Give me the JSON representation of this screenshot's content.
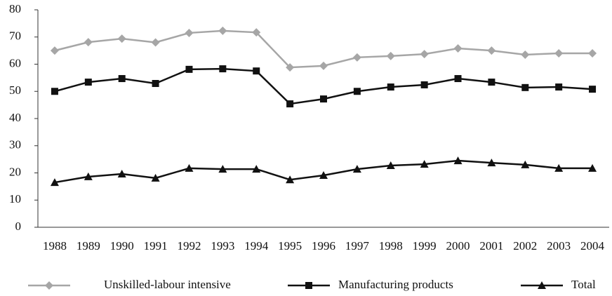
{
  "chart_data": {
    "type": "line",
    "categories": [
      "1988",
      "1989",
      "1990",
      "1991",
      "1992",
      "1993",
      "1994",
      "1995",
      "1996",
      "1997",
      "1998",
      "1999",
      "2000",
      "2001",
      "2002",
      "2003",
      "2004"
    ],
    "series": [
      {
        "name": "Unskilled-labour intensive",
        "color": "#a6a6a6",
        "marker": "diamond",
        "values": [
          65,
          68.1,
          69.4,
          68,
          71.5,
          72.3,
          71.7,
          58.8,
          59.4,
          62.5,
          63,
          63.7,
          65.8,
          65,
          63.5,
          64,
          64
        ]
      },
      {
        "name": "Manufacturing products",
        "color": "#111111",
        "marker": "square",
        "values": [
          50,
          53.4,
          54.7,
          52.9,
          58.1,
          58.3,
          57.5,
          45.4,
          47.2,
          50,
          51.6,
          52.4,
          54.7,
          53.4,
          51.4,
          51.6,
          50.8
        ]
      },
      {
        "name": "Total",
        "color": "#111111",
        "marker": "triangle",
        "values": [
          16.5,
          18.6,
          19.6,
          18.1,
          21.7,
          21.4,
          21.4,
          17.5,
          19.1,
          21.4,
          22.7,
          23.2,
          24.5,
          23.7,
          23,
          21.7,
          21.7
        ]
      }
    ],
    "ylim": [
      0,
      80
    ],
    "yticks": [
      0,
      10,
      20,
      30,
      40,
      50,
      60,
      70,
      80
    ],
    "grid": false,
    "legend": "bottom"
  }
}
